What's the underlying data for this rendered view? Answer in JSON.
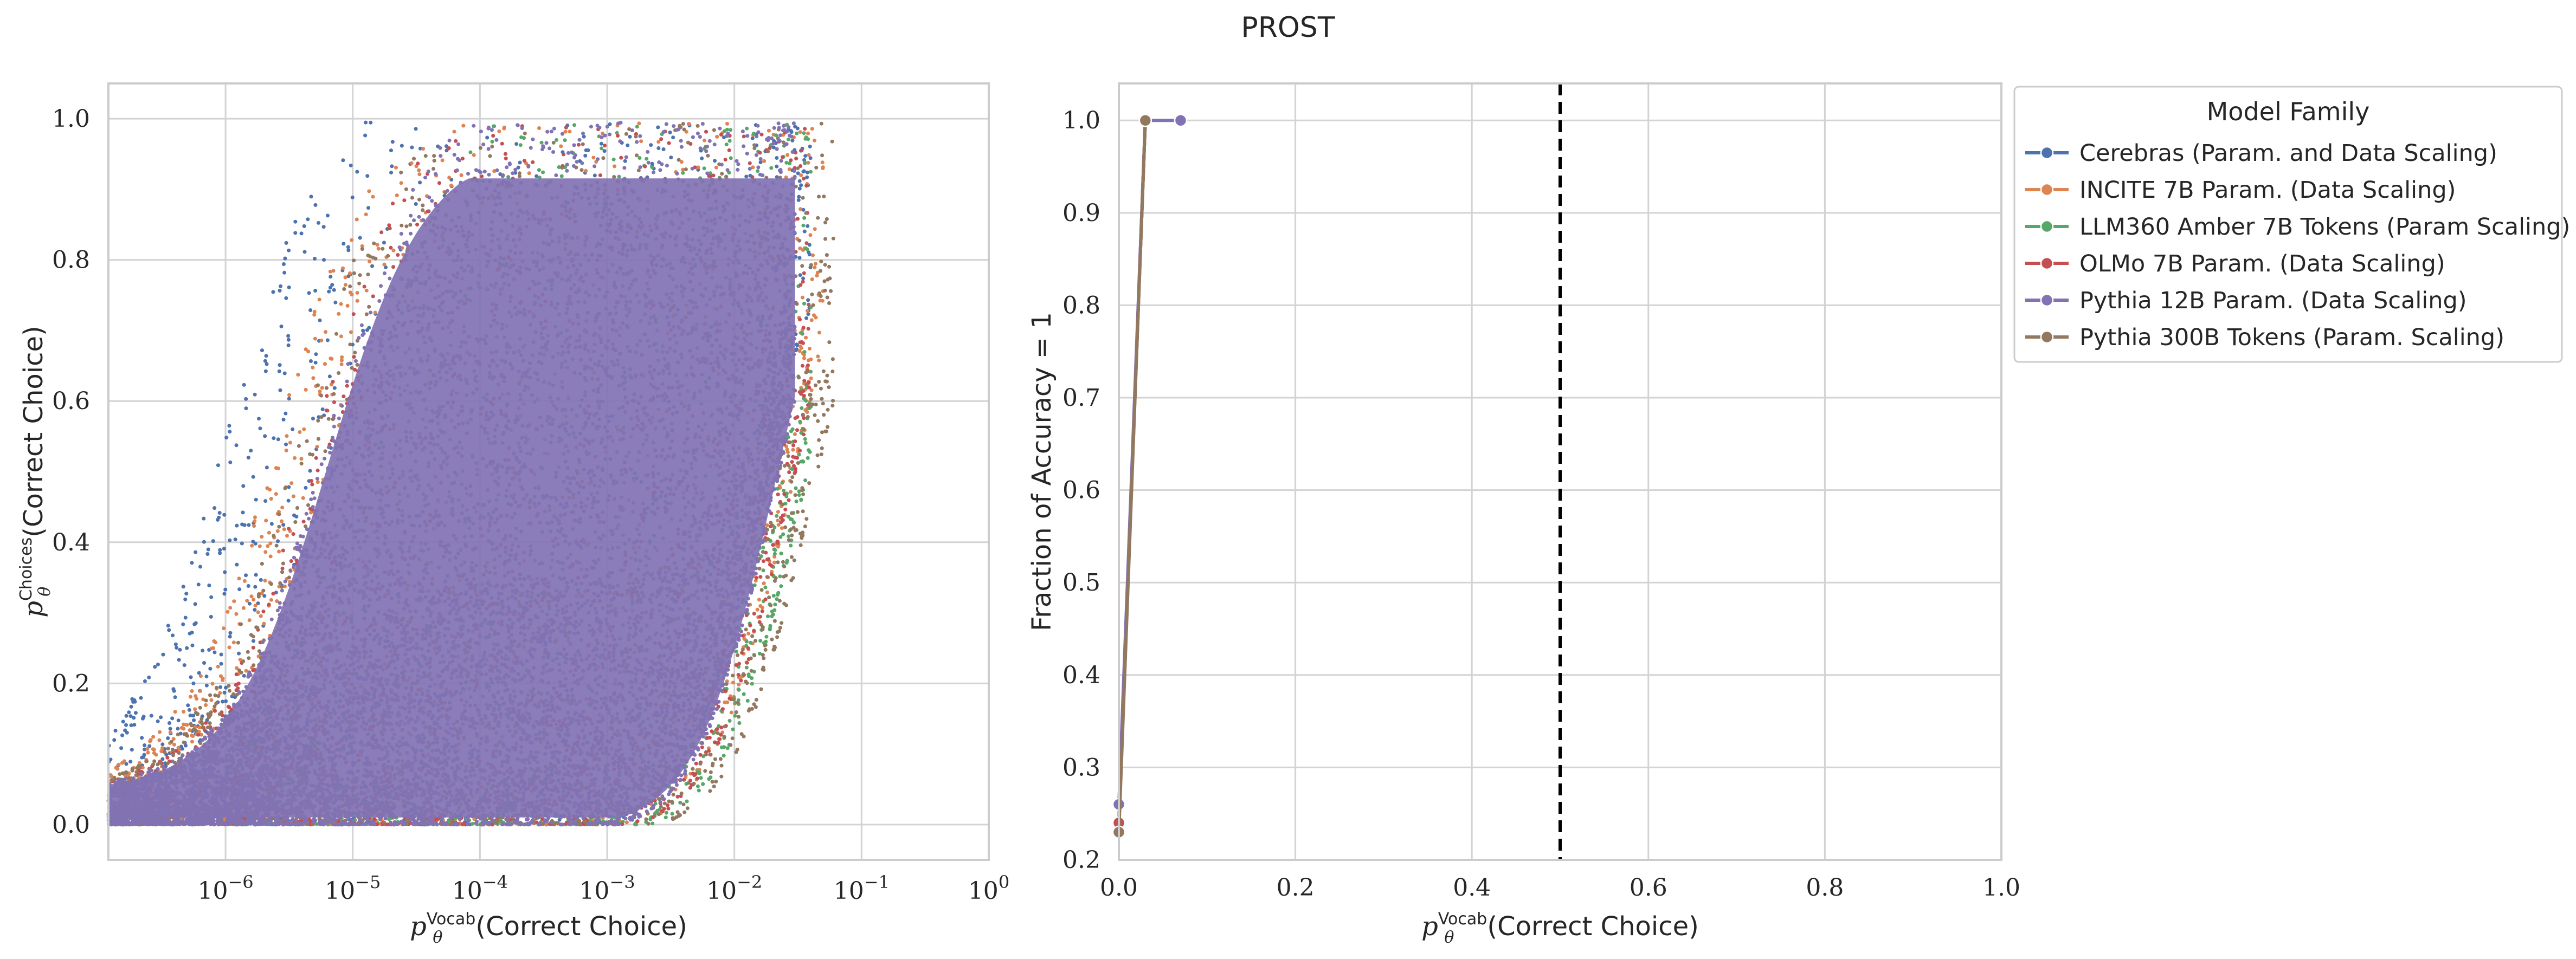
{
  "figure_title": "PROST",
  "chart_data": [
    {
      "type": "scatter",
      "panel": "left",
      "xscale": "log",
      "xlim": [
        1.2e-07,
        1.0
      ],
      "ylim": [
        -0.05,
        1.05
      ],
      "xlabel": "p_θ^Vocab(Correct Choice)",
      "ylabel": "p_θ^Choices(Correct Choice)",
      "x_ticks": [
        1e-06,
        1e-05,
        0.0001,
        0.001,
        0.01,
        0.1,
        1
      ],
      "x_tick_labels": [
        "10^-6",
        "10^-5",
        "10^-4",
        "10^-3",
        "10^-2",
        "10^-1",
        "10^0"
      ],
      "y_ticks": [
        0.0,
        0.2,
        0.4,
        0.6,
        0.8,
        1.0
      ],
      "y_tick_labels": [
        "0.0",
        "0.2",
        "0.4",
        "0.6",
        "0.8",
        "1.0"
      ],
      "grid": true,
      "series": [
        {
          "name": "Cerebras (Param. and Data Scaling)",
          "color": "#4c72b0",
          "x_range": [
            1.2e-07,
            0.04
          ],
          "upper_edge_x_at_y1": 8e-06,
          "lower_edge_x_at_y0": 0.005
        },
        {
          "name": "INCITE 7B Param. (Data Scaling)",
          "color": "#dd8452",
          "x_range": [
            1.2e-07,
            0.05
          ],
          "upper_edge_x_at_y1": 2e-05,
          "lower_edge_x_at_y0": 0.008
        },
        {
          "name": "LLM360 Amber 7B Tokens (Param Scaling)",
          "color": "#55a868",
          "x_range": [
            1e-06,
            0.04
          ],
          "upper_edge_x_at_y1": 9e-05,
          "lower_edge_x_at_y0": 0.01
        },
        {
          "name": "OLMo 7B Param. (Data Scaling)",
          "color": "#c44e52",
          "x_range": [
            1.2e-07,
            0.04
          ],
          "upper_edge_x_at_y1": 4e-05,
          "lower_edge_x_at_y0": 0.008
        },
        {
          "name": "Pythia 300B Tokens (Param. Scaling)",
          "color": "#937860",
          "x_range": [
            1.2e-07,
            0.06
          ],
          "upper_edge_x_at_y1": 3e-05,
          "lower_edge_x_at_y0": 0.012
        },
        {
          "name": "Pythia 12B Param. (Data Scaling)",
          "color": "#8172b3",
          "x_range": [
            1.2e-07,
            0.03
          ],
          "upper_edge_x_at_y1": 5e-05,
          "lower_edge_x_at_y0": 0.006
        }
      ]
    },
    {
      "type": "line",
      "panel": "right",
      "xlim": [
        0.0,
        1.0
      ],
      "ylim": [
        0.2,
        1.04
      ],
      "xlabel": "p_θ^Vocab(Correct Choice)",
      "ylabel": "Fraction of Accuracy = 1",
      "x_ticks": [
        0.0,
        0.2,
        0.4,
        0.6,
        0.8,
        1.0
      ],
      "x_tick_labels": [
        "0.0",
        "0.2",
        "0.4",
        "0.6",
        "0.8",
        "1.0"
      ],
      "y_ticks": [
        0.2,
        0.3,
        0.4,
        0.5,
        0.6,
        0.7,
        0.8,
        0.9,
        1.0
      ],
      "y_tick_labels": [
        "0.2",
        "0.3",
        "0.4",
        "0.5",
        "0.6",
        "0.7",
        "0.8",
        "0.9",
        "1.0"
      ],
      "grid": true,
      "threshold_line": {
        "x": 0.5,
        "style": "dashed",
        "color": "#000000"
      },
      "legend": {
        "title": "Model Family",
        "placement": "outside-upper-right"
      },
      "series": [
        {
          "name": "Cerebras (Param. and Data Scaling)",
          "color": "#4c72b0",
          "x": [
            0.0,
            0.03
          ],
          "y": [
            0.24,
            1.0
          ]
        },
        {
          "name": "INCITE 7B Param. (Data Scaling)",
          "color": "#dd8452",
          "x": [
            0.0,
            0.03
          ],
          "y": [
            0.24,
            1.0
          ]
        },
        {
          "name": "LLM360 Amber 7B Tokens (Param Scaling)",
          "color": "#55a868",
          "x": [
            0.0,
            0.03
          ],
          "y": [
            0.24,
            1.0
          ]
        },
        {
          "name": "OLMo 7B Param. (Data Scaling)",
          "color": "#c44e52",
          "x": [
            0.0,
            0.03
          ],
          "y": [
            0.24,
            1.0
          ]
        },
        {
          "name": "Pythia 12B Param. (Data Scaling)",
          "color": "#8172b3",
          "x": [
            0.0,
            0.03,
            0.07
          ],
          "y": [
            0.26,
            1.0,
            1.0
          ]
        },
        {
          "name": "Pythia 300B Tokens (Param. Scaling)",
          "color": "#937860",
          "x": [
            0.0,
            0.03
          ],
          "y": [
            0.23,
            1.0
          ]
        }
      ]
    }
  ]
}
